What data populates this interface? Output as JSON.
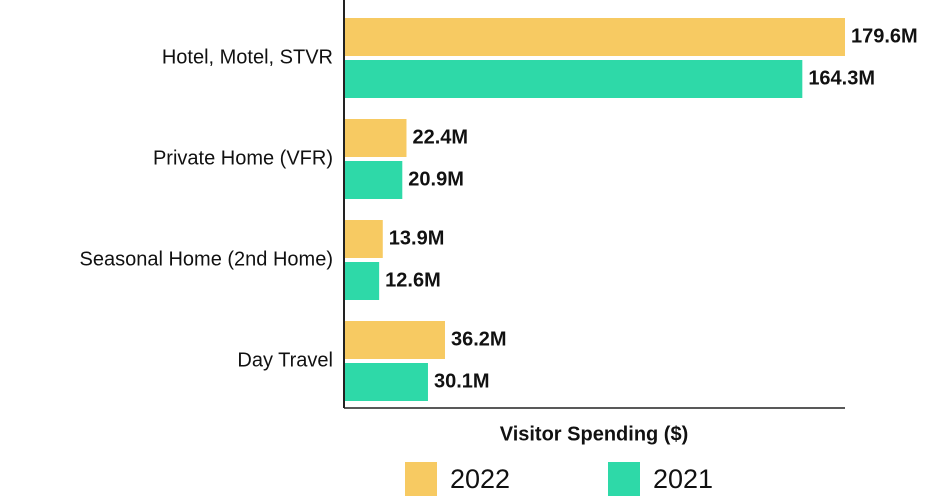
{
  "chart_data": {
    "type": "bar",
    "orientation": "horizontal",
    "x_label": "Visitor Spending ($)",
    "categories": [
      "Hotel, Motel, STVR",
      "Private Home (VFR)",
      "Seasonal Home (2nd Home)",
      "Day Travel"
    ],
    "series": [
      {
        "name": "2022",
        "color": "#f7ca62",
        "values": [
          179600000,
          22400000,
          13900000,
          36200000
        ],
        "value_labels": [
          "179.6M",
          "22.4M",
          "13.9M",
          "36.2M"
        ]
      },
      {
        "name": "2021",
        "color": "#2ed9a8",
        "values": [
          164300000,
          20900000,
          12600000,
          30100000
        ],
        "value_labels": [
          "164.3M",
          "20.9M",
          "12.6M",
          "30.1M"
        ]
      }
    ]
  }
}
